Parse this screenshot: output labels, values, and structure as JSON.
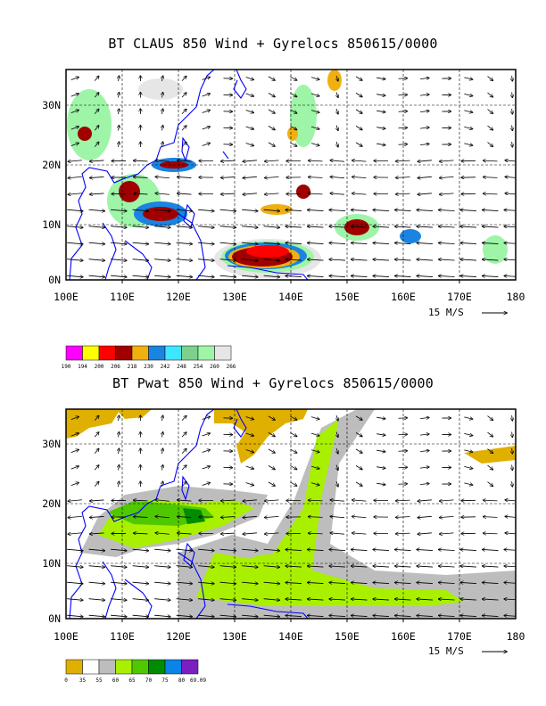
{
  "charts": [
    {
      "title": "BT CLAUS 850 Wind + Gyrelocs 850615/0000",
      "x_ticks": [
        "100E",
        "110E",
        "120E",
        "130E",
        "140E",
        "150E",
        "160E",
        "170E",
        "180"
      ],
      "y_ticks": [
        "0N",
        "10N",
        "20N",
        "30N"
      ],
      "vector_ref": "15 M/S",
      "colorbar_labels": [
        "190",
        "194",
        "200",
        "206",
        "218",
        "230",
        "242",
        "248",
        "254",
        "260",
        "266"
      ],
      "colorbar_colors": [
        "#ff00ff",
        "#ffff00",
        "#ff0000",
        "#a00000",
        "#f0b010",
        "#1a84e0",
        "#3fe6ff",
        "#7ed08e",
        "#9ef5a8",
        "#e6e6e6"
      ]
    },
    {
      "title": "BT Pwat 850 Wind + Gyrelocs 850615/0000",
      "x_ticks": [
        "100E",
        "110E",
        "120E",
        "130E",
        "140E",
        "150E",
        "160E",
        "170E",
        "180"
      ],
      "y_ticks": [
        "0N",
        "10N",
        "20N",
        "30N"
      ],
      "vector_ref": "15 M/S",
      "colorbar_labels": [
        "0",
        "35",
        "55",
        "60",
        "65",
        "70",
        "75",
        "80",
        "69.09"
      ],
      "colorbar_colors": [
        "#e0b000",
        "#ffffff",
        "#bdbdbd",
        "#a8f000",
        "#50c800",
        "#008c00",
        "#0a84e6",
        "#7a20c0"
      ]
    }
  ],
  "chart_data": [
    {
      "type": "heatmap",
      "title": "BT CLAUS 850 Wind + Gyrelocs 850615/0000",
      "xlim": [
        100,
        180
      ],
      "ylim": [
        0,
        35
      ],
      "x_ticks": [
        100,
        110,
        120,
        130,
        140,
        150,
        160,
        170,
        180
      ],
      "y_ticks": [
        0,
        10,
        20,
        30
      ],
      "field": "brightness temperature (K)",
      "colorbar_levels": [
        190,
        194,
        200,
        206,
        218,
        230,
        242,
        248,
        254,
        260,
        266
      ],
      "overlay": "850 hPa wind vectors",
      "vector_reference_speed": 15
    },
    {
      "type": "heatmap",
      "title": "BT Pwat 850 Wind + Gyrelocs 850615/0000",
      "xlim": [
        100,
        180
      ],
      "ylim": [
        0,
        35
      ],
      "x_ticks": [
        100,
        110,
        120,
        130,
        140,
        150,
        160,
        170,
        180
      ],
      "y_ticks": [
        0,
        10,
        20,
        30
      ],
      "field": "precipitable water",
      "colorbar_levels": [
        0,
        35,
        55,
        60,
        65,
        70,
        75,
        80,
        69.09
      ],
      "overlay": "850 hPa wind vectors",
      "vector_reference_speed": 15
    }
  ]
}
